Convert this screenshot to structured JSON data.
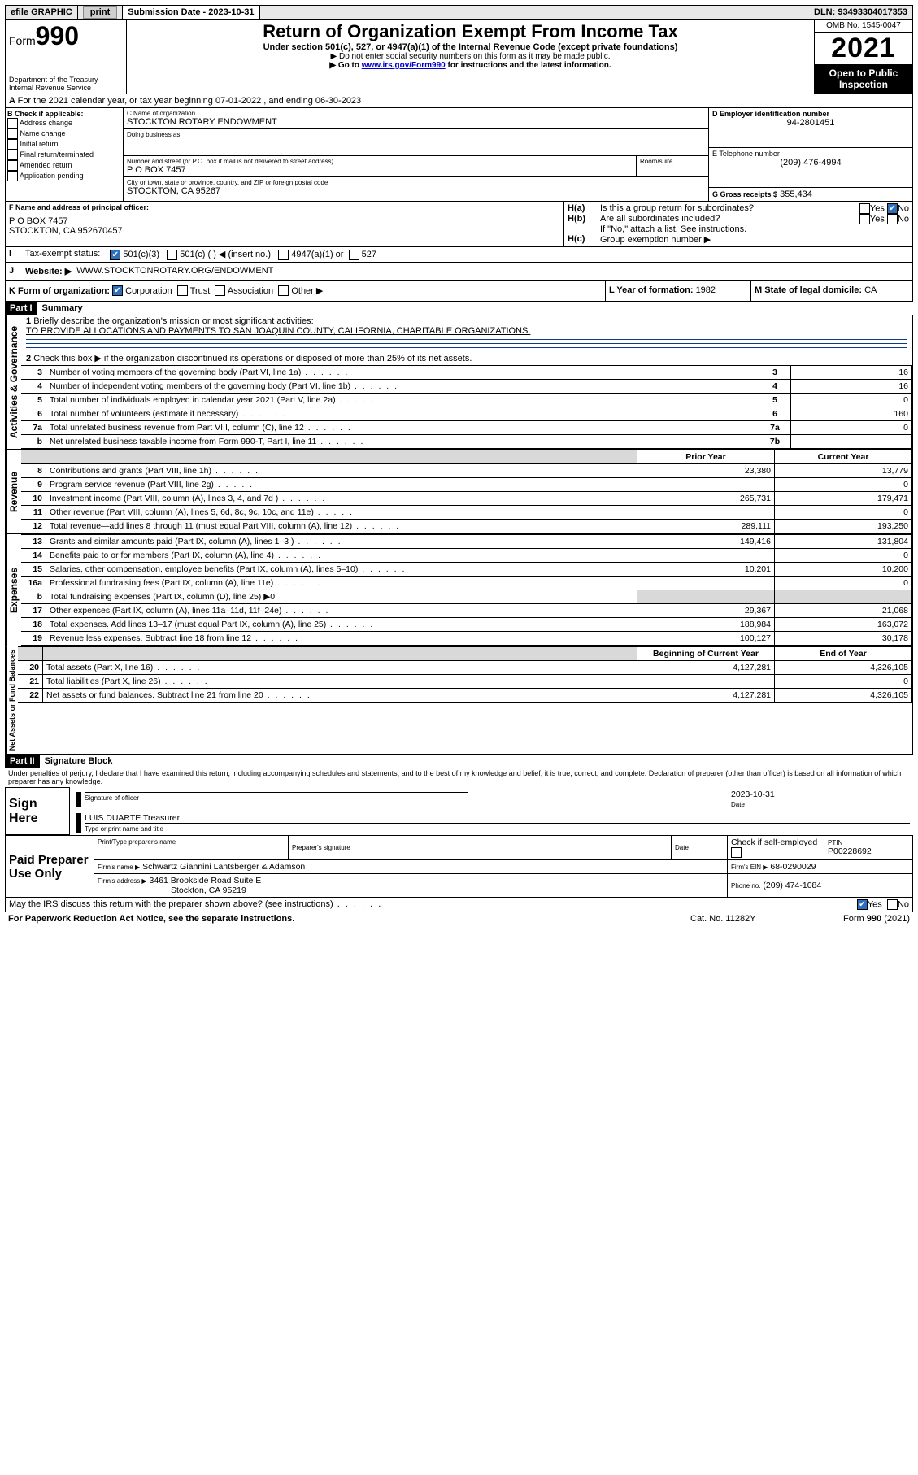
{
  "topbar": {
    "efile": "efile GRAPHIC",
    "print": "print",
    "subdate_label": "Submission Date - 2023-10-31",
    "dln_label": "DLN: 93493304017353"
  },
  "header": {
    "form_word": "Form",
    "form_num": "990",
    "dept": "Department of the Treasury",
    "irs": "Internal Revenue Service",
    "title": "Return of Organization Exempt From Income Tax",
    "subtitle": "Under section 501(c), 527, or 4947(a)(1) of the Internal Revenue Code (except private foundations)",
    "warn": "▶ Do not enter social security numbers on this form as it may be made public.",
    "goto_pre": "▶ Go to ",
    "goto_link": "www.irs.gov/Form990",
    "goto_post": " for instructions and the latest information.",
    "omb": "OMB No. 1545-0047",
    "year": "2021",
    "open": "Open to Public Inspection"
  },
  "A": {
    "text": "For the 2021 calendar year, or tax year beginning 07-01-2022    , and ending 06-30-2023"
  },
  "B": {
    "label": "B Check if applicable:",
    "items": [
      "Address change",
      "Name change",
      "Initial return",
      "Final return/terminated",
      "Amended return",
      "Application pending"
    ]
  },
  "C": {
    "name_label": "C Name of organization",
    "name": "STOCKTON ROTARY ENDOWMENT",
    "dba_label": "Doing business as",
    "dba": "",
    "addr_label": "Number and street (or P.O. box if mail is not delivered to street address)",
    "room_label": "Room/suite",
    "addr": "P O BOX 7457",
    "city_label": "City or town, state or province, country, and ZIP or foreign postal code",
    "city": "STOCKTON, CA  95267"
  },
  "D": {
    "label": "D Employer identification number",
    "val": "94-2801451"
  },
  "E": {
    "label": "E Telephone number",
    "val": "(209) 476-4994"
  },
  "G": {
    "label": "G Gross receipts $",
    "val": "355,434"
  },
  "F": {
    "label": "F  Name and address of principal officer:",
    "line1": "P O BOX 7457",
    "line2": "STOCKTON, CA  952670457"
  },
  "H": {
    "a": "Is this a group return for subordinates?",
    "b": "Are all subordinates included?",
    "bnote": "If \"No,\" attach a list. See instructions.",
    "c": "Group exemption number ▶",
    "yes": "Yes",
    "no": "No"
  },
  "I": {
    "label": "Tax-exempt status:",
    "c3": "501(c)(3)",
    "c": "501(c) (   ) ◀ (insert no.)",
    "a1": "4947(a)(1) or",
    "s527": "527"
  },
  "J": {
    "label": "Website: ▶",
    "val": "WWW.STOCKTONROTARY.ORG/ENDOWMENT"
  },
  "K": {
    "label": "K Form of organization:",
    "corp": "Corporation",
    "trust": "Trust",
    "assoc": "Association",
    "other": "Other ▶"
  },
  "L": {
    "label": "L Year of formation: ",
    "val": "1982"
  },
  "M": {
    "label": "M State of legal domicile: ",
    "val": "CA"
  },
  "part1": {
    "label": "Part I",
    "title": "Summary",
    "l1a": "Briefly describe the organization's mission or most significant activities:",
    "l1b": "TO PROVIDE ALLOCATIONS AND PAYMENTS TO SAN JOAQUIN COUNTY, CALIFORNIA, CHARITABLE ORGANIZATIONS.",
    "l2": "Check this box ▶        if the organization discontinued its operations or disposed of more than 25% of its net assets.",
    "rows_top": [
      {
        "n": "3",
        "t": "Number of voting members of the governing body (Part VI, line 1a)",
        "box": "3",
        "v": "16"
      },
      {
        "n": "4",
        "t": "Number of independent voting members of the governing body (Part VI, line 1b)",
        "box": "4",
        "v": "16"
      },
      {
        "n": "5",
        "t": "Total number of individuals employed in calendar year 2021 (Part V, line 2a)",
        "box": "5",
        "v": "0"
      },
      {
        "n": "6",
        "t": "Total number of volunteers (estimate if necessary)",
        "box": "6",
        "v": "160"
      },
      {
        "n": "7a",
        "t": "Total unrelated business revenue from Part VIII, column (C), line 12",
        "box": "7a",
        "v": "0"
      },
      {
        "n": "b",
        "t": "Net unrelated business taxable income from Form 990-T, Part I, line 11",
        "box": "7b",
        "v": ""
      }
    ],
    "col_prior": "Prior Year",
    "col_curr": "Current Year",
    "revenue": [
      {
        "n": "8",
        "t": "Contributions and grants (Part VIII, line 1h)",
        "p": "23,380",
        "c": "13,779"
      },
      {
        "n": "9",
        "t": "Program service revenue (Part VIII, line 2g)",
        "p": "",
        "c": "0"
      },
      {
        "n": "10",
        "t": "Investment income (Part VIII, column (A), lines 3, 4, and 7d )",
        "p": "265,731",
        "c": "179,471"
      },
      {
        "n": "11",
        "t": "Other revenue (Part VIII, column (A), lines 5, 6d, 8c, 9c, 10c, and 11e)",
        "p": "",
        "c": "0"
      },
      {
        "n": "12",
        "t": "Total revenue—add lines 8 through 11 (must equal Part VIII, column (A), line 12)",
        "p": "289,111",
        "c": "193,250"
      }
    ],
    "expenses": [
      {
        "n": "13",
        "t": "Grants and similar amounts paid (Part IX, column (A), lines 1–3 )",
        "p": "149,416",
        "c": "131,804"
      },
      {
        "n": "14",
        "t": "Benefits paid to or for members (Part IX, column (A), line 4)",
        "p": "",
        "c": "0"
      },
      {
        "n": "15",
        "t": "Salaries, other compensation, employee benefits (Part IX, column (A), lines 5–10)",
        "p": "10,201",
        "c": "10,200"
      },
      {
        "n": "16a",
        "t": "Professional fundraising fees (Part IX, column (A), line 11e)",
        "p": "",
        "c": "0"
      },
      {
        "n": "b",
        "t": "Total fundraising expenses (Part IX, column (D), line 25) ▶0",
        "p": "",
        "c": "",
        "shadeP": true,
        "shadeC": true
      },
      {
        "n": "17",
        "t": "Other expenses (Part IX, column (A), lines 11a–11d, 11f–24e)",
        "p": "29,367",
        "c": "21,068"
      },
      {
        "n": "18",
        "t": "Total expenses. Add lines 13–17 (must equal Part IX, column (A), line 25)",
        "p": "188,984",
        "c": "163,072"
      },
      {
        "n": "19",
        "t": "Revenue less expenses. Subtract line 18 from line 12",
        "p": "100,127",
        "c": "30,178"
      }
    ],
    "col_begin": "Beginning of Current Year",
    "col_end": "End of Year",
    "netassets": [
      {
        "n": "20",
        "t": "Total assets (Part X, line 16)",
        "p": "4,127,281",
        "c": "4,326,105"
      },
      {
        "n": "21",
        "t": "Total liabilities (Part X, line 26)",
        "p": "",
        "c": "0"
      },
      {
        "n": "22",
        "t": "Net assets or fund balances. Subtract line 21 from line 20",
        "p": "4,127,281",
        "c": "4,326,105"
      }
    ],
    "vlabels": {
      "gov": "Activities & Governance",
      "rev": "Revenue",
      "exp": "Expenses",
      "net": "Net Assets or Fund Balances"
    }
  },
  "part2": {
    "label": "Part II",
    "title": "Signature Block",
    "perjury": "Under penalties of perjury, I declare that I have examined this return, including accompanying schedules and statements, and to the best of my knowledge and belief, it is true, correct, and complete. Declaration of preparer (other than officer) is based on all information of which preparer has any knowledge.",
    "sign_here": "Sign Here",
    "sig_officer": "Signature of officer",
    "date": "Date",
    "date_val": "2023-10-31",
    "officer": "LUIS DUARTE  Treasurer",
    "typename": "Type or print name and title",
    "paid": "Paid Preparer Use Only",
    "pt_name_lbl": "Print/Type preparer's name",
    "pt_sig_lbl": "Preparer's signature",
    "pt_date_lbl": "Date",
    "pt_self_lbl": "Check        if self-employed",
    "ptin_lbl": "PTIN",
    "ptin": "P00228692",
    "firm_name_lbl": "Firm's name     ▶",
    "firm_name": "Schwartz Giannini Lantsberger & Adamson",
    "firm_ein_lbl": "Firm's EIN ▶",
    "firm_ein": "68-0290029",
    "firm_addr_lbl": "Firm's address ▶",
    "firm_addr1": "3461 Brookside Road Suite E",
    "firm_addr2": "Stockton, CA  95219",
    "phone_lbl": "Phone no.",
    "phone": "(209) 474-1084",
    "discuss": "May the IRS discuss this return with the preparer shown above? (see instructions)",
    "paperwork": "For Paperwork Reduction Act Notice, see the separate instructions.",
    "catno": "Cat. No. 11282Y",
    "formfoot": "Form 990 (2021)"
  },
  "colors": {
    "link": "#0000cc",
    "checked": "#2c6fbb",
    "hr": "#0b3a8a"
  }
}
